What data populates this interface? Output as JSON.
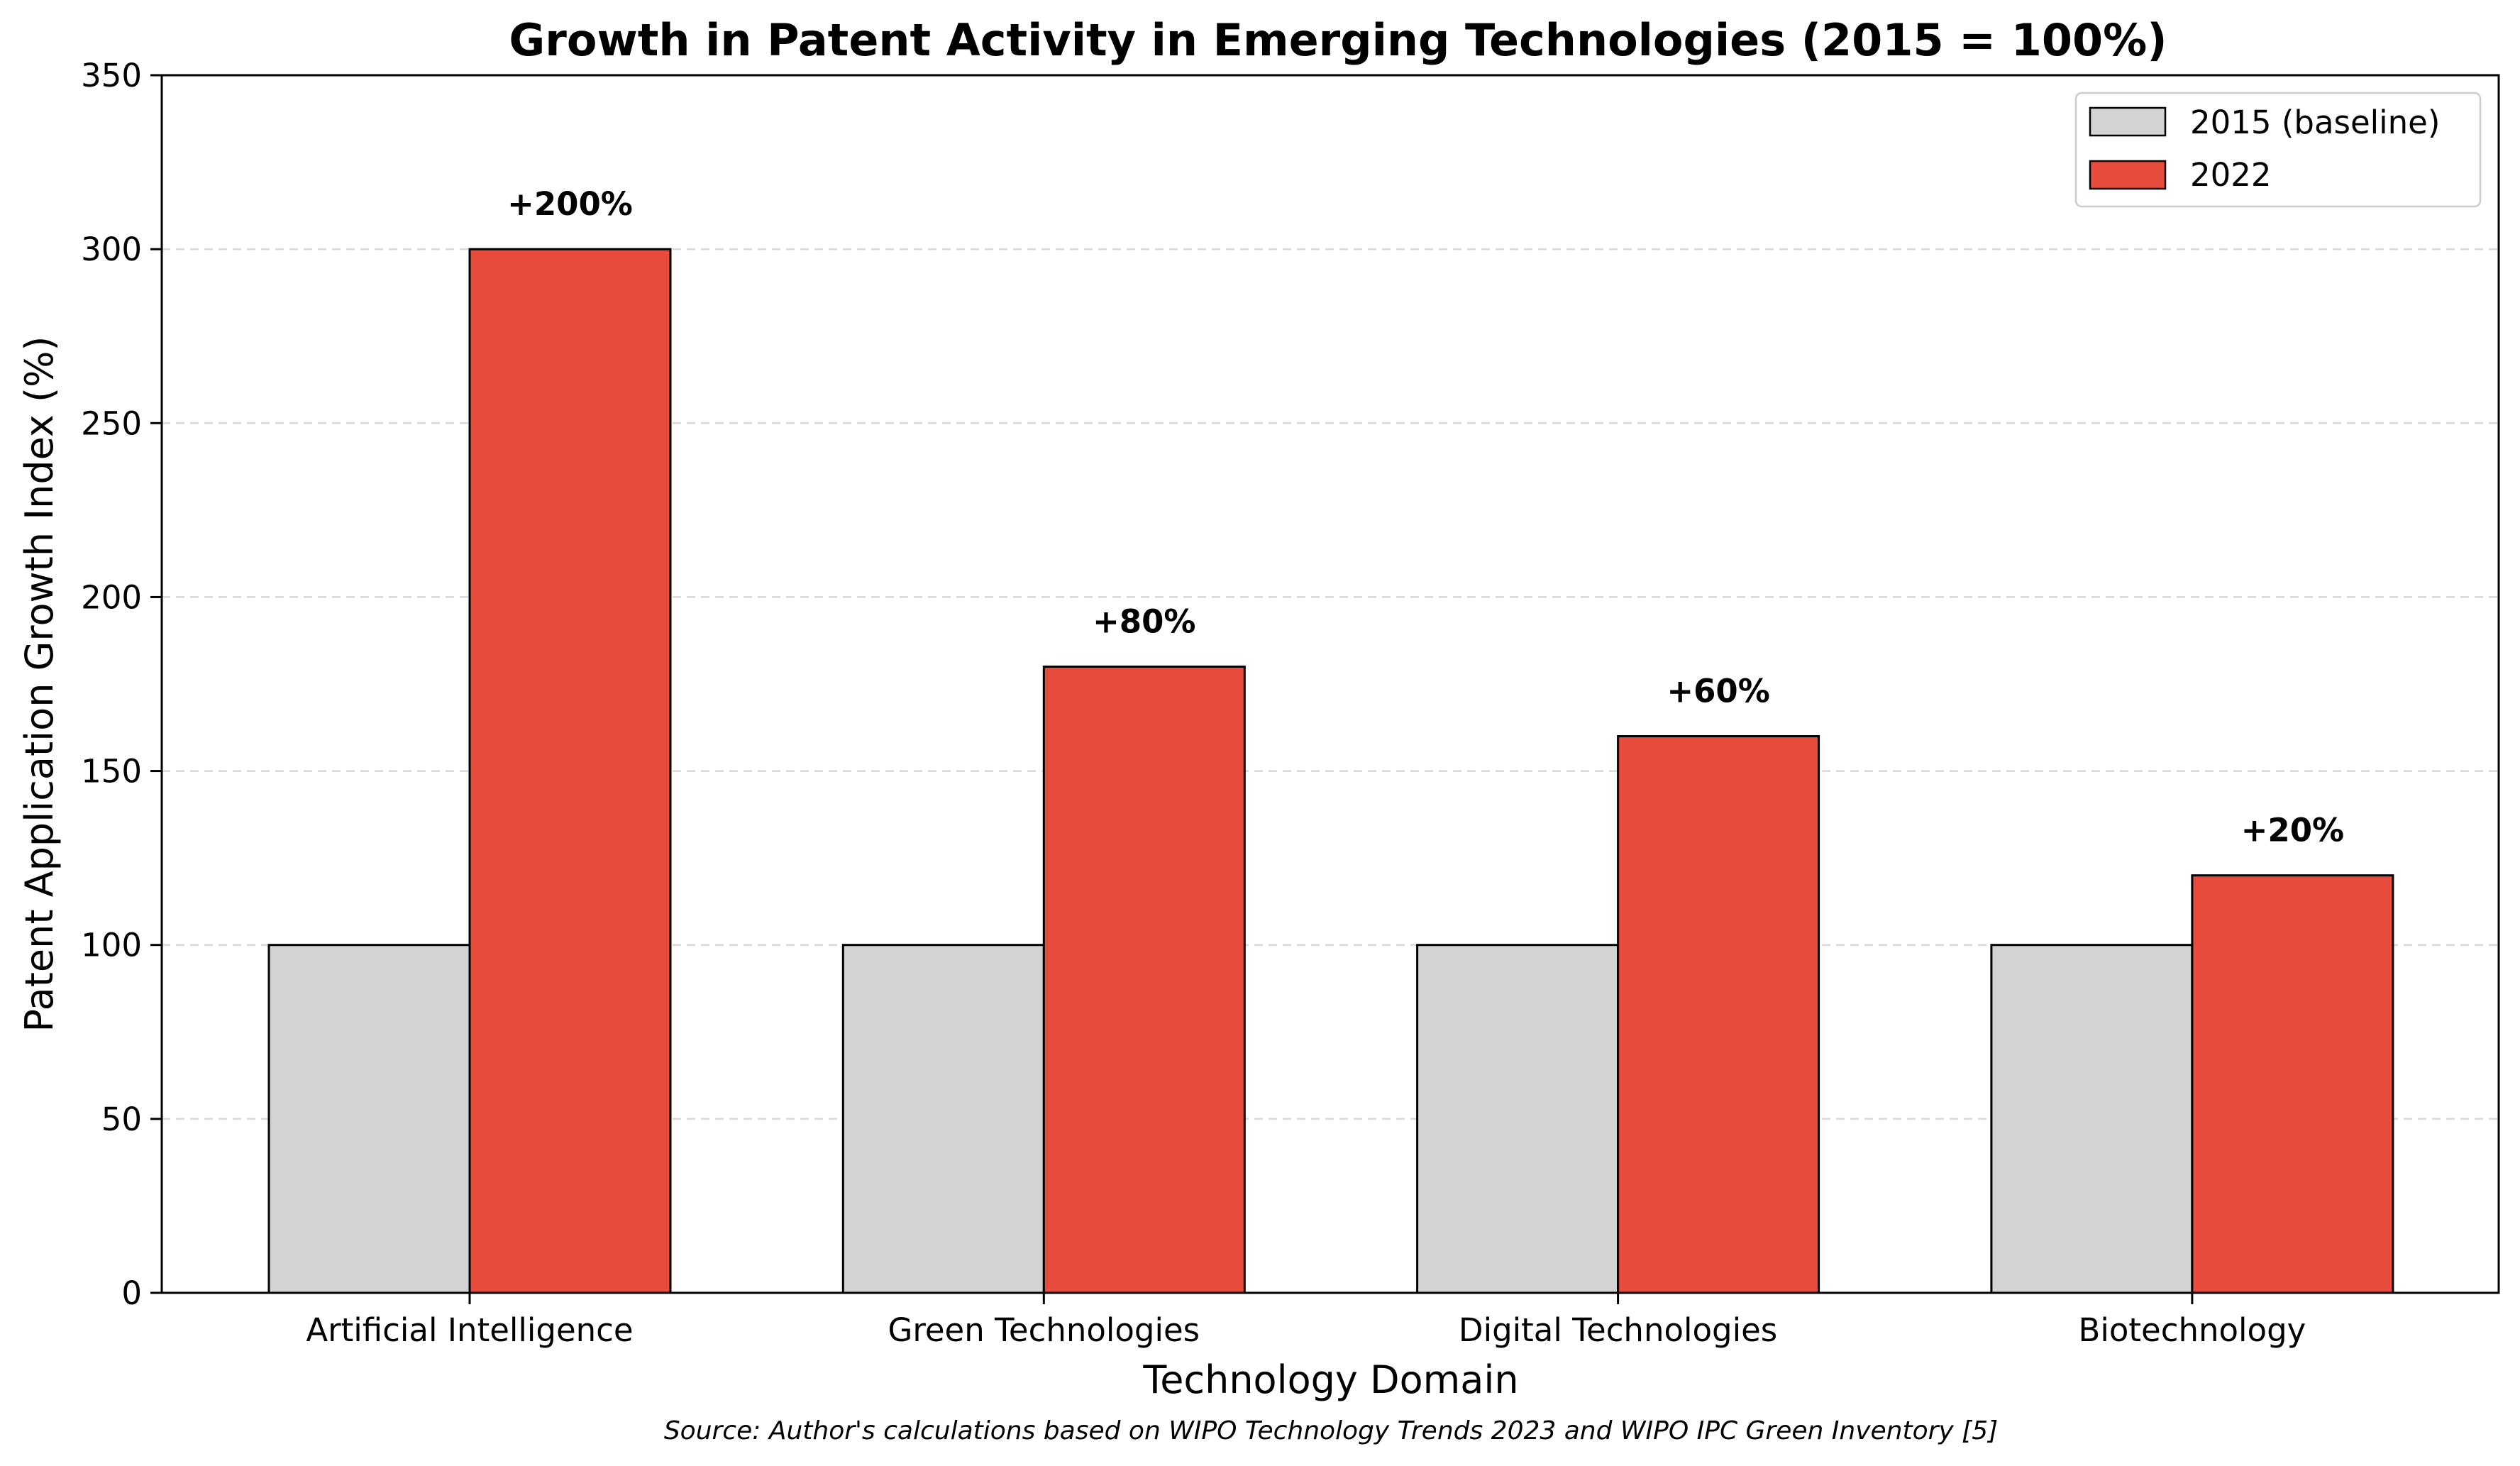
{
  "chart_data": {
    "type": "bar",
    "title": "Growth in Patent Activity in Emerging Technologies (2015 = 100%)",
    "xlabel": "Technology Domain",
    "ylabel": "Patent Application Growth Index (%)",
    "ylim": [
      0,
      350
    ],
    "yticks": [
      "0",
      "50",
      "100",
      "150",
      "200",
      "250",
      "300",
      "350"
    ],
    "categories": [
      "Artificial Intelligence",
      "Green Technologies",
      "Digital Technologies",
      "Biotechnology"
    ],
    "series": [
      {
        "name": "2015 (baseline)",
        "color": "#d3d3d3",
        "values": [
          100,
          100,
          100,
          100
        ]
      },
      {
        "name": "2022",
        "color": "#e74c3c",
        "values": [
          300,
          180,
          160,
          120
        ]
      }
    ],
    "bar_labels": [
      "+200%",
      "+80%",
      "+60%",
      "+20%"
    ],
    "grid": "y-dashed",
    "legend_position": "top-right",
    "source_note": "Source: Author's calculations based on WIPO Technology Trends 2023 and WIPO IPC Green Inventory [5]"
  }
}
